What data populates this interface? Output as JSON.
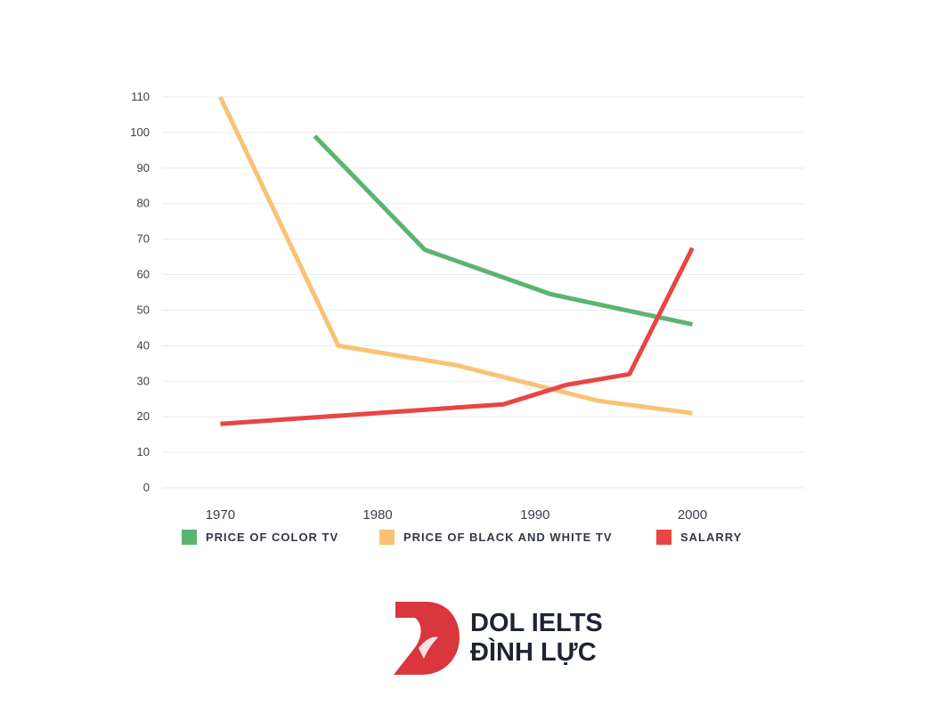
{
  "chart_data": {
    "type": "line",
    "title": "",
    "xlabel": "",
    "ylabel": "",
    "x_ticks": [
      "1970",
      "1980",
      "1990",
      "2000"
    ],
    "y_ticks": [
      "0",
      "10",
      "20",
      "30",
      "40",
      "50",
      "60",
      "70",
      "80",
      "90",
      "100",
      "110"
    ],
    "ylim": [
      0,
      110
    ],
    "xlim": [
      1966.3,
      2007.1
    ],
    "grid": true,
    "legend_position": "bottom",
    "series": [
      {
        "name": "PRICE OF COLOR TV",
        "color": "#5bb46f",
        "points": [
          [
            1976,
            99
          ],
          [
            1983,
            67
          ],
          [
            1991,
            54.5
          ],
          [
            2000,
            46
          ]
        ]
      },
      {
        "name": "PRICE OF BLACK AND WHITE TV",
        "color": "#f9c274",
        "points": [
          [
            1970,
            110
          ],
          [
            1977.5,
            40
          ],
          [
            1985,
            34.5
          ],
          [
            1994,
            24.5
          ],
          [
            2000,
            21
          ]
        ]
      },
      {
        "name": "SALARRY",
        "color": "#e84545",
        "points": [
          [
            1970,
            18
          ],
          [
            1988,
            23.5
          ],
          [
            1992,
            29
          ],
          [
            1996,
            32
          ],
          [
            2000,
            67.5
          ]
        ]
      }
    ]
  },
  "brand": {
    "line1": "DOL IELTS",
    "line2": "ĐÌNH LỰC",
    "color": "#d9363e"
  }
}
